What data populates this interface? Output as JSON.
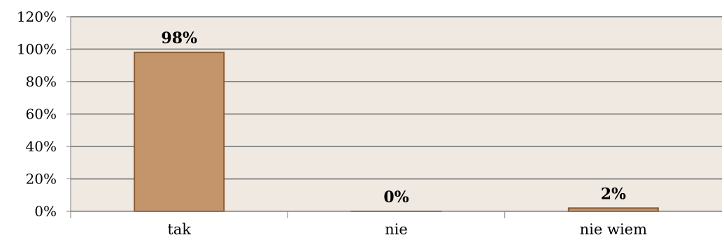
{
  "chart_data": {
    "type": "bar",
    "categories": [
      "tak",
      "nie",
      "nie wiem"
    ],
    "values": [
      98,
      0,
      2
    ],
    "data_labels": [
      "98%",
      "0%",
      "2%"
    ],
    "y_ticks": [
      "0%",
      "20%",
      "40%",
      "60%",
      "80%",
      "100%",
      "120%"
    ],
    "ylim": [
      0,
      120
    ],
    "title": "",
    "xlabel": "",
    "ylabel": "",
    "grid": true,
    "legend": "none",
    "colors": {
      "plot_background": "#efe9e1",
      "bar_fill": "#c4956a",
      "bar_stroke": "#8a5a32",
      "gridline": "#8c8c8c",
      "axis": "#7f7f7f"
    }
  }
}
